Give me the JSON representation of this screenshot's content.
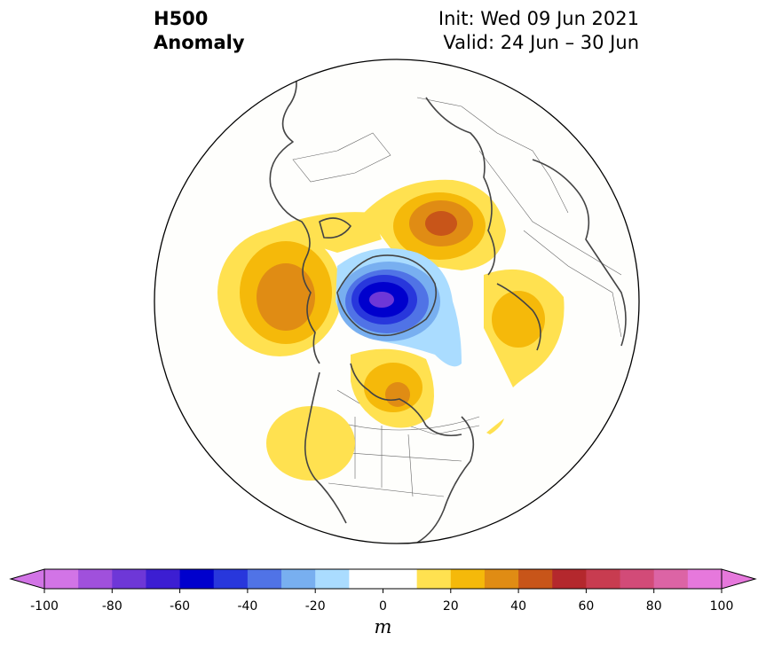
{
  "title": {
    "variable_line1": "H500",
    "variable_line2": "Anomaly",
    "init": "Init: Wed 09 Jun 2021",
    "valid": "Valid: 24 Jun – 30 Jun"
  },
  "colorbar": {
    "unit": "m",
    "ticks": [
      "-100",
      "-80",
      "-60",
      "-40",
      "-20",
      "0",
      "20",
      "40",
      "60",
      "80",
      "100"
    ],
    "levels": [
      -100,
      -90,
      -80,
      -70,
      -60,
      -50,
      -40,
      -30,
      -20,
      -10,
      10,
      20,
      30,
      40,
      50,
      60,
      70,
      80,
      90,
      100
    ],
    "colors": [
      "#d274e6",
      "#a050dc",
      "#6e37d7",
      "#3c1ed2",
      "#0000cd",
      "#2837dc",
      "#5073e6",
      "#78aff0",
      "#aadcff",
      "#ffffff",
      "#ffffff",
      "#ffe150",
      "#f5b90a",
      "#e08c14",
      "#c85519",
      "#b4282d",
      "#c83c50",
      "#d24b78",
      "#dc64a5",
      "#e678dc"
    ],
    "extend_low_color": "#d274e6",
    "extend_high_color": "#e678dc"
  },
  "map": {
    "projection": "north-polar-stereographic",
    "coastline_color": "#444444",
    "anomaly_features": [
      {
        "name": "positive-anomaly-north-atlantic",
        "peak_m": 40
      },
      {
        "name": "positive-anomaly-western-russia",
        "peak_m": 50
      },
      {
        "name": "positive-anomaly-north-pacific",
        "peak_m": 30
      },
      {
        "name": "positive-anomaly-central-canada",
        "peak_m": 30
      },
      {
        "name": "positive-anomaly-western-us",
        "peak_m": 10
      },
      {
        "name": "negative-anomaly-arctic",
        "peak_m": -90
      }
    ]
  }
}
